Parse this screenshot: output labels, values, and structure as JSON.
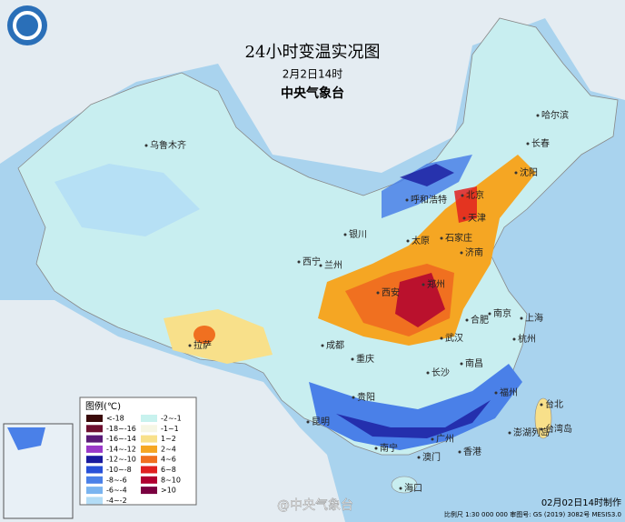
{
  "header": {
    "title": "24小时变温实况图",
    "subtitle": "2月2日14时",
    "agency": "中央气象台"
  },
  "legend": {
    "title": "图例(℃)",
    "items": [
      {
        "label": "<-18",
        "color": "#3a0a0a"
      },
      {
        "label": "-18~-16",
        "color": "#6e1030"
      },
      {
        "label": "-16~-14",
        "color": "#5a1a78"
      },
      {
        "label": "-14~-12",
        "color": "#9a38c8"
      },
      {
        "label": "-12~-10",
        "color": "#1a1a9e"
      },
      {
        "label": "-10~-8",
        "color": "#2850d8"
      },
      {
        "label": "-8~-6",
        "color": "#4a80e8"
      },
      {
        "label": "-6~-4",
        "color": "#7ab4f0"
      },
      {
        "label": "-4~-2",
        "color": "#b2dcf6"
      },
      {
        "label": "-2~-1",
        "color": "#c8f2ee"
      },
      {
        "label": "-1~1",
        "color": "#f6f6e4"
      },
      {
        "label": "1~2",
        "color": "#f8e08a"
      },
      {
        "label": "2~4",
        "color": "#f5a623"
      },
      {
        "label": "4~6",
        "color": "#f07020"
      },
      {
        "label": "6~8",
        "color": "#e02020"
      },
      {
        "label": "8~10",
        "color": "#b00030"
      },
      {
        "label": ">10",
        "color": "#7a0040"
      }
    ]
  },
  "cities": [
    "乌鲁木齐",
    "哈尔滨",
    "长春",
    "沈阳",
    "北京",
    "天津",
    "呼和浩特",
    "银川",
    "石家庄",
    "太原",
    "济南",
    "西宁",
    "兰州",
    "郑州",
    "西安",
    "合肥",
    "南京",
    "上海",
    "成都",
    "武汉",
    "杭州",
    "拉萨",
    "重庆",
    "长沙",
    "南昌",
    "贵阳",
    "福州",
    "台北",
    "昆明",
    "南宁",
    "广州",
    "香港",
    "澳门",
    "海口",
    "台湾岛",
    "澎湖列岛"
  ],
  "footer": {
    "made": "02月02日14时制作",
    "scale": "比例尺 1:30 000 000  审图号: GS (2019) 3082号 MESIS3.0",
    "watermark": "@中央气象台"
  }
}
